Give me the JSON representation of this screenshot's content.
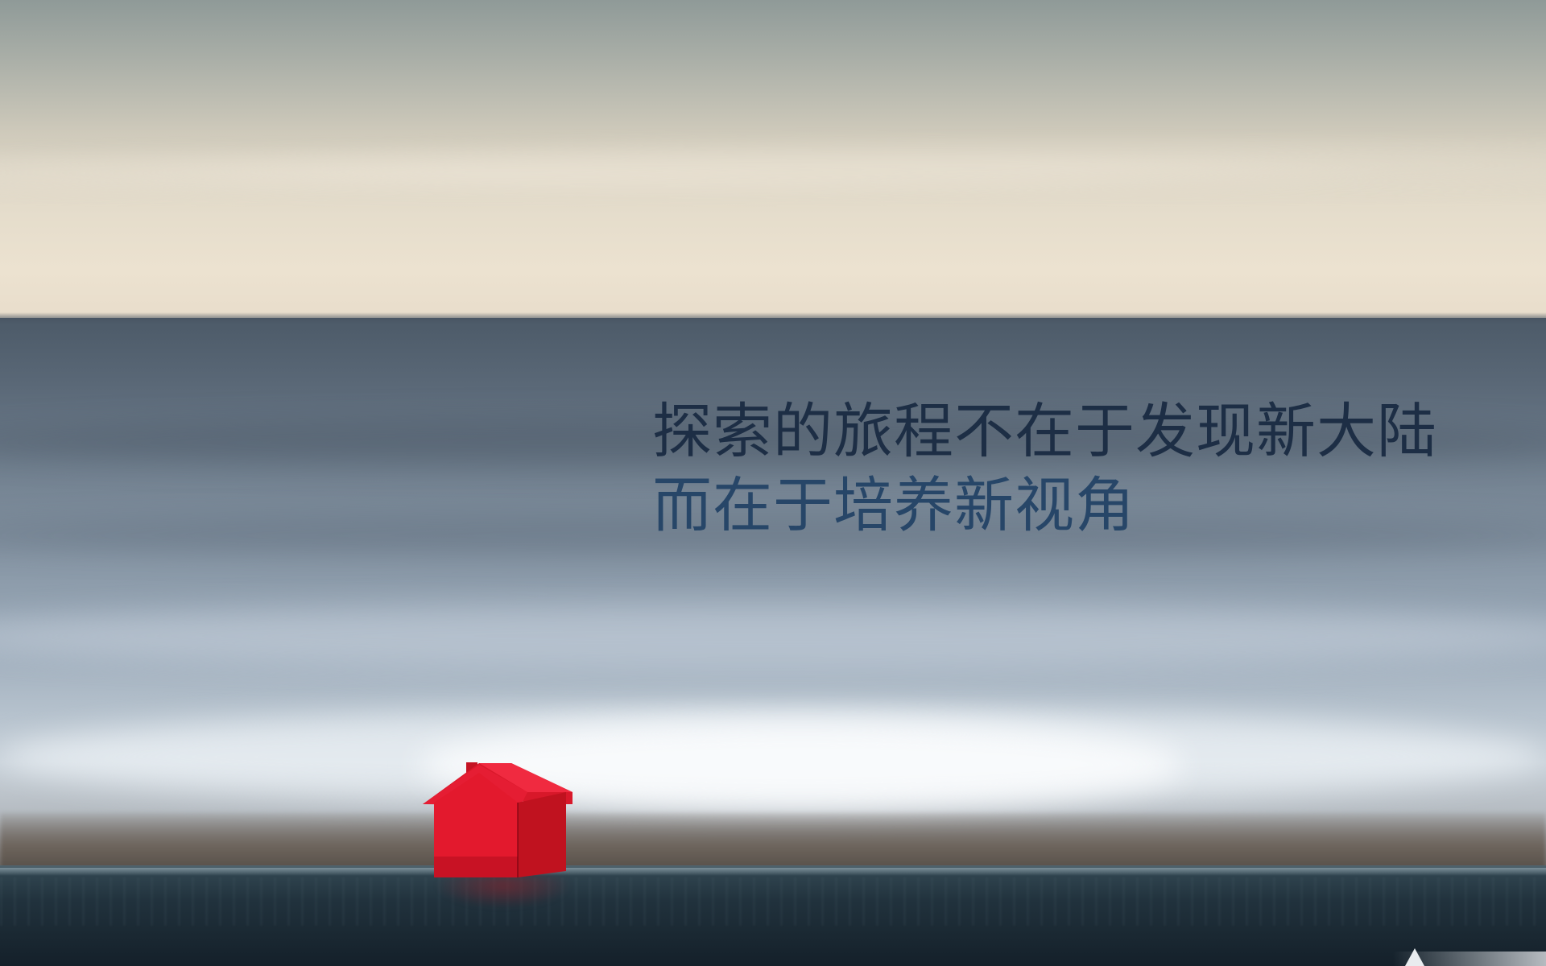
{
  "quote": {
    "line1": "探索的旅程不在于发现新大陆",
    "line2": "而在于培养新视角"
  },
  "scene": {
    "subject": "red-house-icon",
    "colors": {
      "house": "#e81c2e",
      "text_primary": "#1d2e45",
      "text_secondary": "#274668",
      "rail": "#21323d"
    }
  }
}
